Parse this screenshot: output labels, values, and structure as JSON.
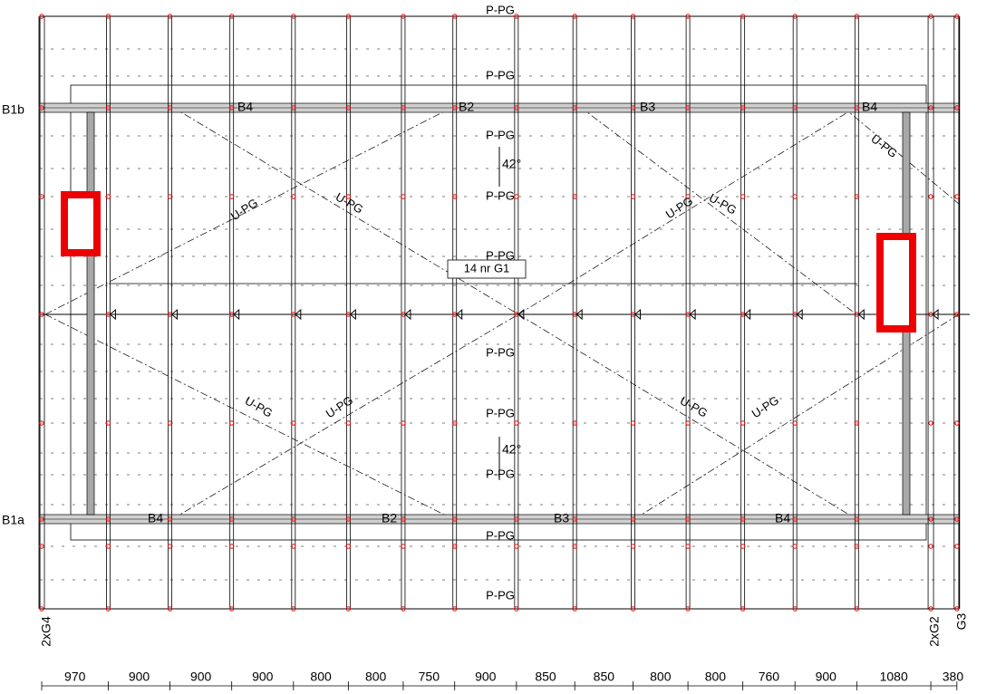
{
  "purlin_labels": [
    "P-PG",
    "P-PG",
    "P-PG",
    "P-PG",
    "P-PG",
    "P-PG",
    "P-PG",
    "P-PG",
    "P-PG",
    "P-PG"
  ],
  "diagonal_labels": [
    "U-PG",
    "U-PG",
    "U-PG",
    "U-PG",
    "U-PG",
    "U-PG",
    "U-PG",
    "U-PG",
    "U-PG"
  ],
  "pitch_labels": [
    "42°",
    "42°"
  ],
  "rafter_count_label": "14 nr  G1",
  "beam_labels": {
    "top": [
      "B1b",
      "B4",
      "B2",
      "B3",
      "B4"
    ],
    "bottom": [
      "B1a",
      "B4",
      "B2",
      "B3",
      "B4"
    ]
  },
  "section_labels": [
    "2xG4",
    "2xG2",
    "G3"
  ],
  "dimensions": [
    970,
    900,
    900,
    900,
    800,
    800,
    750,
    900,
    850,
    850,
    800,
    800,
    760,
    900,
    1080,
    380
  ]
}
